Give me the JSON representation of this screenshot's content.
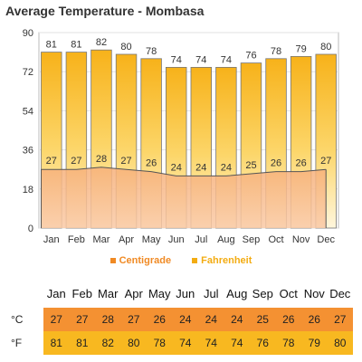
{
  "title": "Average Temperature - Mombasa",
  "chart_data": {
    "type": "bar",
    "categories": [
      "Jan",
      "Feb",
      "Mar",
      "Apr",
      "May",
      "Jun",
      "Jul",
      "Aug",
      "Sep",
      "Oct",
      "Nov",
      "Dec"
    ],
    "series": [
      {
        "name": "Centigrade",
        "chart_type": "area",
        "values": [
          27,
          27,
          28,
          27,
          26,
          24,
          24,
          24,
          25,
          26,
          26,
          27
        ],
        "color": "#f08a24"
      },
      {
        "name": "Fahrenheit",
        "chart_type": "bar",
        "values": [
          81,
          81,
          82,
          80,
          78,
          74,
          74,
          74,
          76,
          78,
          79,
          80
        ],
        "color": "#f3ac12"
      }
    ],
    "yticks": [
      0,
      18,
      36,
      54,
      72,
      90
    ],
    "ylim": [
      0,
      90
    ],
    "grid": true,
    "legend_position": "bottom"
  },
  "legend": {
    "centigrade": "Centigrade",
    "fahrenheit": "Fahrenheit"
  },
  "table": {
    "row_c_label": "°C",
    "row_f_label": "°F"
  },
  "colors": {
    "bar_top": "#fddf86",
    "bar_bottom": "#ffffff",
    "area": "#f6b68a",
    "grid": "#dddddd"
  }
}
